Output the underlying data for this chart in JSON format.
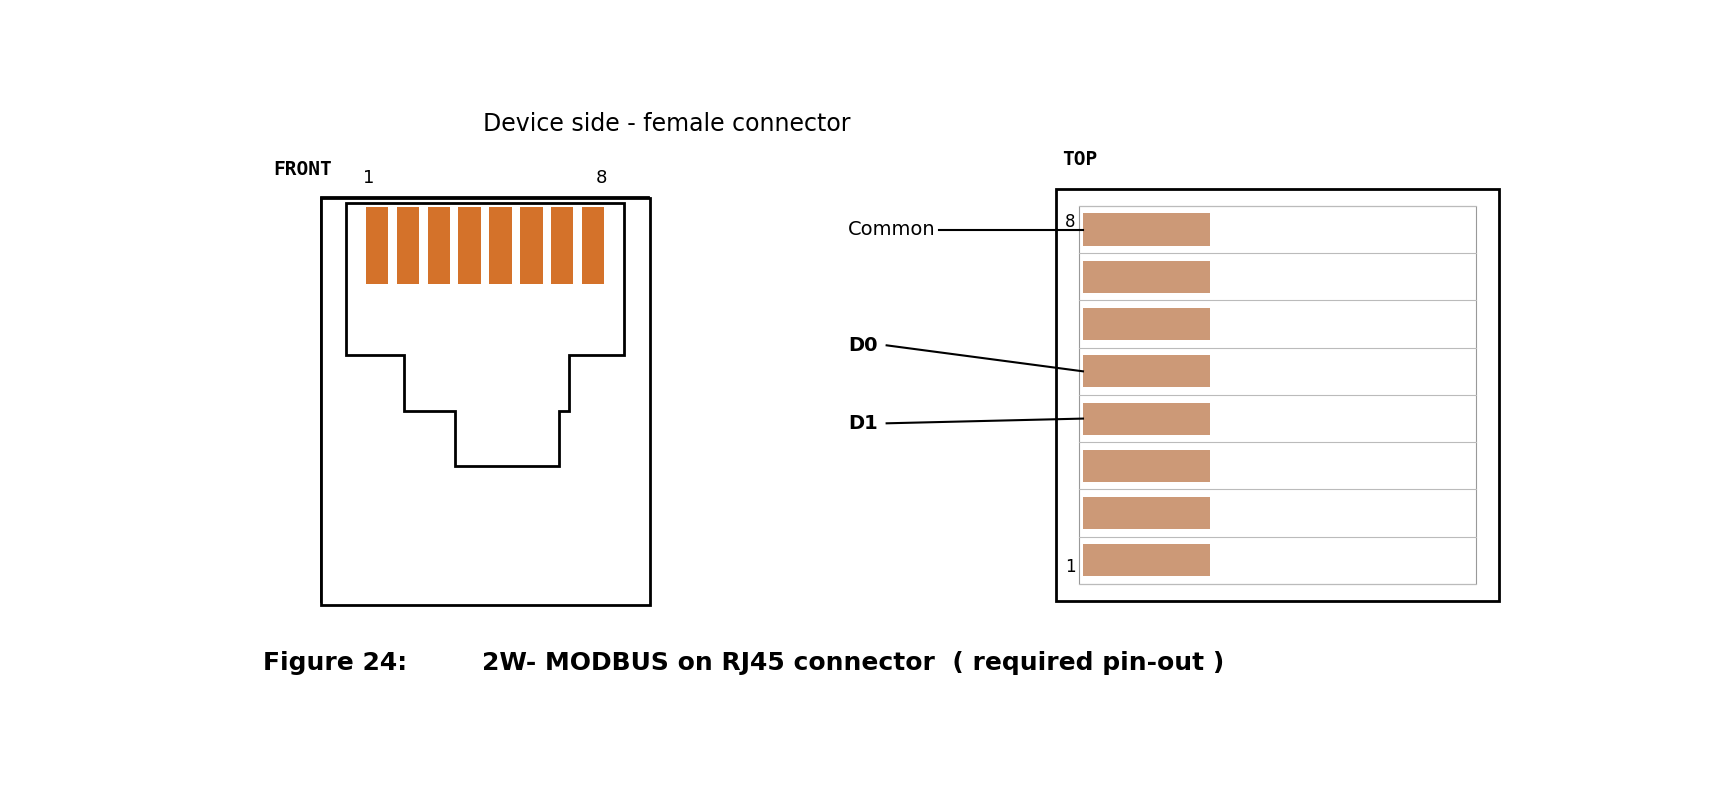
{
  "title": "Device side - female connector",
  "bg_color": "#ffffff",
  "pin_color": "#d4722a",
  "pin_color_top": "#cc9977",
  "outline_color": "#000000",
  "gray_line_color": "#bbbbbb",
  "front_label": "FRONT",
  "top_label": "TOP",
  "common_label": "Common",
  "d0_label": "D0",
  "d1_label": "D1",
  "figure_label": "Figure 24:",
  "figure_text": "2W- MODBUS on RJ45 connector  ( required pin-out )",
  "num_pins": 8
}
